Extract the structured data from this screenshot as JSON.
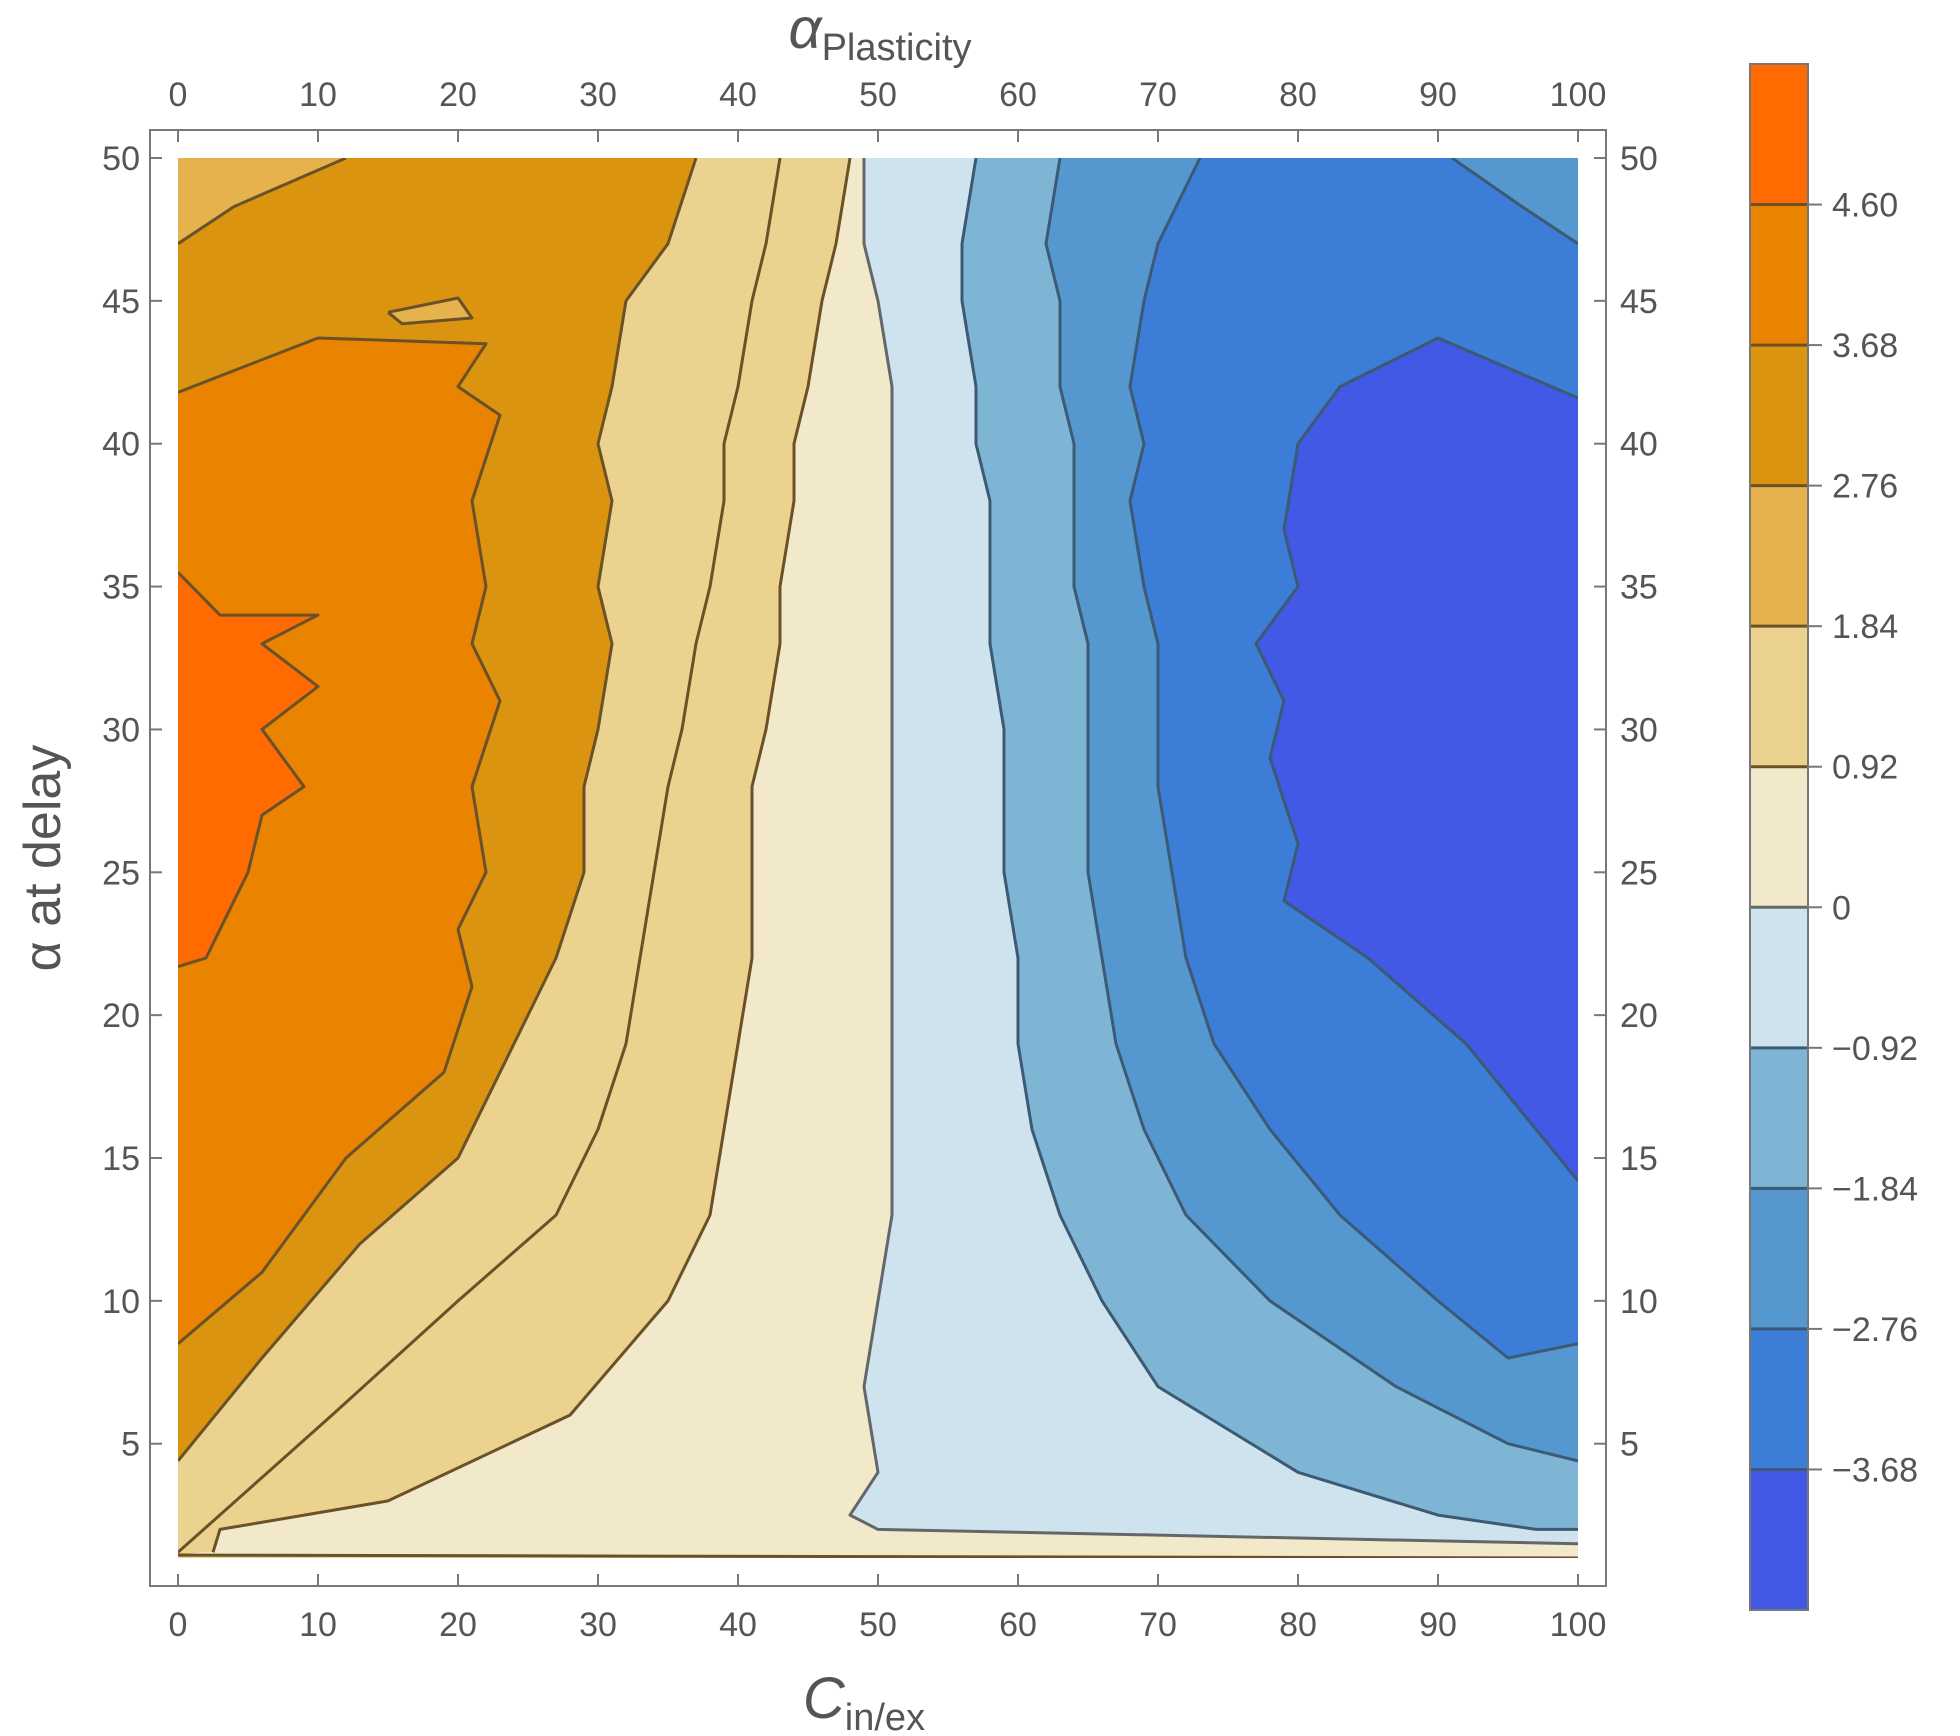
{
  "chart_data": {
    "type": "heatmap",
    "subtype": "contour",
    "x_axis": {
      "label_main": "C",
      "label_sub": "in/ex",
      "range": [
        0,
        100
      ],
      "ticks": [
        0,
        10,
        20,
        30,
        40,
        50,
        60,
        70,
        80,
        90,
        100
      ]
    },
    "x_axis_top": {
      "label_main": "α",
      "label_sub": "Plasticity",
      "ticks": [
        0,
        10,
        20,
        30,
        40,
        50,
        60,
        70,
        80,
        90,
        100
      ]
    },
    "y_axis": {
      "label": "α at delay",
      "range": [
        1,
        50
      ],
      "ticks": [
        5,
        10,
        15,
        20,
        25,
        30,
        35,
        40,
        45,
        50
      ]
    },
    "colorbar": {
      "orientation": "vertical",
      "placement": "right",
      "tick_labels": [
        "4.60",
        "3.68",
        "2.76",
        "1.84",
        "0.92",
        "0",
        "−0.92",
        "−1.84",
        "−2.76",
        "−3.68"
      ],
      "levels": [
        4.6,
        3.68,
        2.76,
        1.84,
        0.92,
        0,
        -0.92,
        -1.84,
        -2.76,
        -3.68
      ],
      "band_colors": [
        "#FF6B00",
        "#EA8300",
        "#DB9410",
        "#E5B24E",
        "#EBD38F",
        "#F2E9CB",
        "#CFE3EE",
        "#7FB5D4",
        "#5598CF",
        "#3C7DD8",
        "#4159E4"
      ]
    },
    "contours": [
      {
        "level": 4.6,
        "points": [
          [
            0,
            35.5
          ],
          [
            3,
            34
          ],
          [
            10,
            34
          ],
          [
            6,
            33
          ],
          [
            10,
            31.5
          ],
          [
            6,
            30
          ],
          [
            9,
            28
          ],
          [
            6,
            27
          ],
          [
            5,
            25
          ],
          [
            2,
            22
          ],
          [
            0,
            21.7
          ]
        ]
      },
      {
        "level": 3.68,
        "points": [
          [
            0,
            41.8
          ],
          [
            10,
            43.7
          ],
          [
            22,
            43.5
          ],
          [
            20,
            42
          ],
          [
            23,
            41
          ],
          [
            21,
            38
          ],
          [
            22,
            35
          ],
          [
            21,
            33
          ],
          [
            23,
            31
          ],
          [
            21,
            28
          ],
          [
            22,
            25
          ],
          [
            20,
            23
          ],
          [
            21,
            21
          ],
          [
            19,
            18
          ],
          [
            12,
            15
          ],
          [
            6,
            11
          ],
          [
            0,
            8.5
          ]
        ]
      },
      {
        "level": 3.68,
        "closed": true,
        "points": [
          [
            15,
            44.6
          ],
          [
            20,
            45.1
          ],
          [
            21,
            44.4
          ],
          [
            16,
            44.2
          ],
          [
            15,
            44.6
          ]
        ]
      },
      {
        "level": 2.76,
        "points": [
          [
            0,
            47
          ],
          [
            4,
            48.3
          ],
          [
            12,
            50
          ]
        ]
      },
      {
        "level": 2.76,
        "points": [
          [
            37,
            50
          ],
          [
            35,
            47
          ],
          [
            32,
            45
          ],
          [
            31,
            42
          ],
          [
            30,
            40
          ],
          [
            31,
            38
          ],
          [
            30,
            35
          ],
          [
            31,
            33
          ],
          [
            30,
            30
          ],
          [
            29,
            28
          ],
          [
            29,
            25
          ],
          [
            27,
            22
          ],
          [
            24,
            19
          ],
          [
            20,
            15
          ],
          [
            13,
            12
          ],
          [
            6,
            8
          ],
          [
            0,
            4.4
          ]
        ]
      },
      {
        "level": 1.84,
        "points": [
          [
            43,
            50
          ],
          [
            42,
            47
          ],
          [
            41,
            45
          ],
          [
            40,
            42
          ],
          [
            39,
            40
          ],
          [
            39,
            38
          ],
          [
            38,
            35
          ],
          [
            37,
            33
          ],
          [
            36,
            30
          ],
          [
            35,
            28
          ],
          [
            34,
            25
          ],
          [
            33,
            22
          ],
          [
            32,
            19
          ],
          [
            30,
            16
          ],
          [
            27,
            13
          ],
          [
            20,
            10
          ],
          [
            11,
            6
          ],
          [
            0,
            1.2
          ]
        ]
      },
      {
        "level": 0.92,
        "points": [
          [
            48,
            50
          ],
          [
            47,
            47
          ],
          [
            46,
            45
          ],
          [
            45,
            42
          ],
          [
            44,
            40
          ],
          [
            44,
            38
          ],
          [
            43,
            35
          ],
          [
            43,
            33
          ],
          [
            42,
            30
          ],
          [
            41,
            28
          ],
          [
            41,
            25
          ],
          [
            41,
            22
          ],
          [
            40,
            19
          ],
          [
            39,
            16
          ],
          [
            38,
            13
          ],
          [
            35,
            10
          ],
          [
            28,
            6
          ],
          [
            15,
            3
          ],
          [
            3,
            2
          ],
          [
            2.5,
            1.2
          ]
        ]
      },
      {
        "level": 0.92,
        "points": [
          [
            0,
            1.1
          ],
          [
            50,
            1.05
          ],
          [
            100,
            1.0
          ]
        ]
      },
      {
        "level": 0,
        "points": [
          [
            49,
            50
          ],
          [
            49,
            47
          ],
          [
            50,
            45
          ],
          [
            51,
            42
          ],
          [
            51,
            40
          ],
          [
            51,
            38
          ],
          [
            51,
            35
          ],
          [
            51,
            33
          ],
          [
            51,
            30
          ],
          [
            51,
            28
          ],
          [
            51,
            25
          ],
          [
            51,
            22
          ],
          [
            51,
            19
          ],
          [
            51,
            16
          ],
          [
            51,
            13
          ],
          [
            50,
            10
          ],
          [
            49,
            7
          ],
          [
            50,
            4
          ],
          [
            48,
            2.5
          ],
          [
            50,
            2
          ],
          [
            70,
            1.8
          ],
          [
            90,
            1.6
          ],
          [
            100,
            1.5
          ]
        ]
      },
      {
        "level": -0.92,
        "points": [
          [
            57,
            50
          ],
          [
            56,
            47
          ],
          [
            56,
            45
          ],
          [
            57,
            42
          ],
          [
            57,
            40
          ],
          [
            58,
            38
          ],
          [
            58,
            35
          ],
          [
            58,
            33
          ],
          [
            59,
            30
          ],
          [
            59,
            28
          ],
          [
            59,
            25
          ],
          [
            60,
            22
          ],
          [
            60,
            19
          ],
          [
            61,
            16
          ],
          [
            63,
            13
          ],
          [
            66,
            10
          ],
          [
            70,
            7
          ],
          [
            80,
            4
          ],
          [
            90,
            2.5
          ],
          [
            97,
            2
          ],
          [
            100,
            2
          ]
        ]
      },
      {
        "level": -1.84,
        "points": [
          [
            63,
            50
          ],
          [
            62,
            47
          ],
          [
            63,
            45
          ],
          [
            63,
            42
          ],
          [
            64,
            40
          ],
          [
            64,
            38
          ],
          [
            64,
            35
          ],
          [
            65,
            33
          ],
          [
            65,
            30
          ],
          [
            65,
            28
          ],
          [
            65,
            25
          ],
          [
            66,
            22
          ],
          [
            67,
            19
          ],
          [
            69,
            16
          ],
          [
            72,
            13
          ],
          [
            78,
            10
          ],
          [
            87,
            7
          ],
          [
            95,
            5
          ],
          [
            100,
            4.4
          ]
        ]
      },
      {
        "level": -2.76,
        "points": [
          [
            73,
            50
          ],
          [
            70,
            47
          ],
          [
            69,
            45
          ],
          [
            68,
            42
          ],
          [
            69,
            40
          ],
          [
            68,
            38
          ],
          [
            69,
            35
          ],
          [
            70,
            33
          ],
          [
            70,
            30
          ],
          [
            70,
            28
          ],
          [
            71,
            25
          ],
          [
            72,
            22
          ],
          [
            74,
            19
          ],
          [
            78,
            16
          ],
          [
            83,
            13
          ],
          [
            90,
            10
          ],
          [
            95,
            8
          ],
          [
            100,
            8.5
          ]
        ]
      },
      {
        "level": -2.76,
        "points": [
          [
            91,
            50
          ],
          [
            96,
            48.3
          ],
          [
            100,
            47
          ]
        ]
      },
      {
        "level": -3.68,
        "points": [
          [
            100,
            41.6
          ],
          [
            90,
            43.7
          ],
          [
            83,
            42
          ],
          [
            80,
            40
          ],
          [
            79,
            37
          ],
          [
            80,
            35
          ],
          [
            77,
            33
          ],
          [
            79,
            31
          ],
          [
            78,
            29
          ],
          [
            80,
            26
          ],
          [
            79,
            24
          ],
          [
            85,
            22
          ],
          [
            92,
            19
          ],
          [
            97,
            16
          ],
          [
            100,
            14.2
          ]
        ]
      }
    ]
  }
}
